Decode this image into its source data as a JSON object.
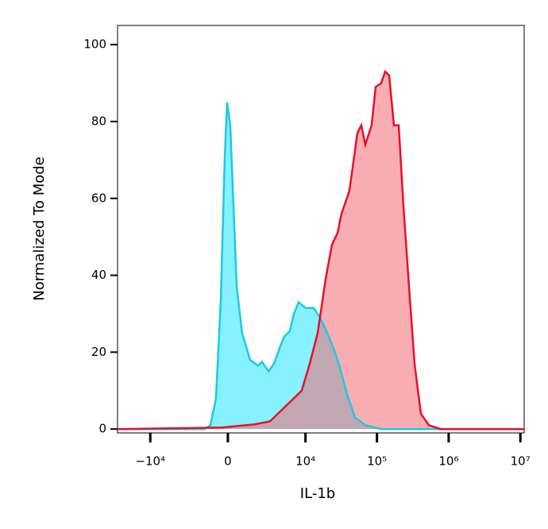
{
  "chart_data": {
    "type": "histogram-overlay",
    "xlabel": "IL-1b",
    "ylabel": "Normalized To Mode",
    "xscale": "biexponential",
    "xlim": [
      -28800,
      11300000
    ],
    "ylim": [
      -1,
      105
    ],
    "xticks": [
      {
        "value": -10000,
        "label": "−10⁴"
      },
      0,
      {
        "value": 10000,
        "label": "10⁴"
      },
      {
        "value": 100000,
        "label": "10⁵"
      },
      {
        "value": 1000000,
        "label": "10⁶"
      },
      {
        "value": 10000000,
        "label": "10⁷"
      }
    ],
    "yticks": [
      0,
      20,
      40,
      60,
      80,
      100
    ],
    "series": [
      {
        "name": "blue",
        "color": "#1ec8e6",
        "fill": "#22e5ff",
        "x": [
          -28800,
          -1350,
          -985,
          -653,
          -387,
          -170,
          -43,
          128,
          300,
          475,
          792,
          1295,
          1879,
          2217,
          2844,
          3479,
          4212,
          4944,
          5976,
          6828,
          7983,
          10085,
          13050,
          16040,
          20190,
          24770,
          30390,
          38250,
          49350,
          68800,
          114500,
          11300000
        ],
        "values": [
          0,
          0,
          1,
          8,
          33,
          70,
          85,
          79,
          58,
          37,
          25,
          18,
          16.5,
          17.5,
          15,
          17,
          21,
          24,
          25.5,
          30,
          33,
          31.5,
          31.5,
          29,
          25,
          21,
          16,
          9,
          3,
          1,
          0,
          0
        ]
      },
      {
        "name": "red",
        "color": "#e8102a",
        "fill": "#f26a73",
        "x": [
          -28800,
          -300,
          563,
          1575,
          3000,
          4570,
          6828,
          8850,
          11490,
          14850,
          19190,
          23550,
          28140,
          31990,
          41300,
          53300,
          60500,
          68800,
          84300,
          95800,
          114500,
          130200,
          147900,
          172300,
          200900,
          234000,
          279800,
          334600,
          410400,
          529400,
          776700,
          11300000
        ],
        "values": [
          0,
          0.4,
          0.8,
          1.2,
          2,
          5,
          8,
          10,
          17,
          25,
          39,
          48,
          51,
          56,
          62,
          77,
          79,
          74,
          79,
          89,
          90,
          93,
          92,
          79,
          79,
          58,
          37,
          17,
          4,
          1,
          0,
          0
        ]
      }
    ]
  }
}
